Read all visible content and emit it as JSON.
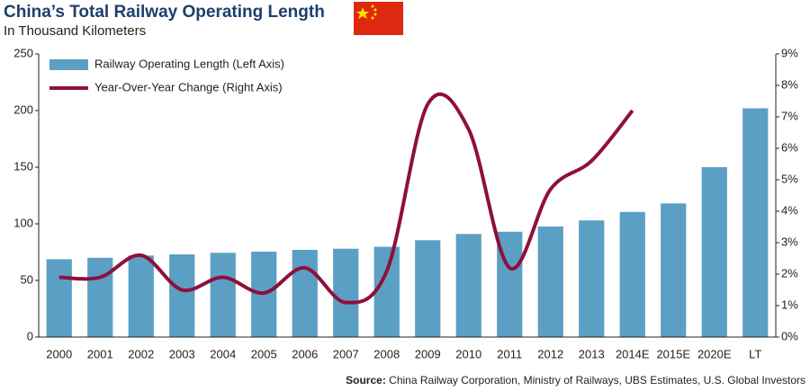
{
  "chart_data": {
    "type": "bar_line",
    "title": "China’s Total Railway Operating Length",
    "subtitle": "In Thousand Kilometers",
    "source_label": "Source:",
    "source": "China Railway Corporation, Ministry of Railways, UBS Estimates, U.S. Global Investors",
    "categories": [
      "2000",
      "2001",
      "2002",
      "2003",
      "2004",
      "2005",
      "2006",
      "2007",
      "2008",
      "2009",
      "2010",
      "2011",
      "2012",
      "2013",
      "2014E",
      "2015E",
      "2020E",
      "LT"
    ],
    "series": [
      {
        "name": "Railway Operating Length (Left Axis)",
        "color": "#5b9fc4",
        "kind": "bar",
        "values": [
          68.7,
          70,
          72,
          73,
          74.4,
          75.4,
          77,
          78,
          79.7,
          85.5,
          91,
          93,
          97.6,
          103,
          110.5,
          118,
          150,
          202
        ]
      },
      {
        "name": "Year-Over-Year Change (Right Axis)",
        "color": "#8f0f3c",
        "kind": "line",
        "axis": "y2",
        "values": [
          1.9,
          1.9,
          2.6,
          1.5,
          1.9,
          1.4,
          2.2,
          1.1,
          2.1,
          7.4,
          6.6,
          2.2,
          4.7,
          5.6,
          7.2,
          null,
          null,
          null
        ]
      }
    ],
    "ylim": [
      0,
      250
    ],
    "yticks": [
      0,
      50,
      100,
      150,
      200,
      250
    ],
    "y2lim": [
      0,
      9
    ],
    "y2ticks": [
      {
        "value": 0,
        "label": "0%"
      },
      {
        "value": 1,
        "label": "1%"
      },
      {
        "value": 2,
        "label": "2%"
      },
      {
        "value": 3,
        "label": "3%"
      },
      {
        "value": 4,
        "label": "4%"
      },
      {
        "value": 5,
        "label": "5%"
      },
      {
        "value": 6,
        "label": "6%"
      },
      {
        "value": 7,
        "label": "7%"
      },
      {
        "value": 8,
        "label": "8%"
      },
      {
        "value": 9,
        "label": "9%"
      }
    ],
    "legend": "upper left",
    "grid": false
  }
}
